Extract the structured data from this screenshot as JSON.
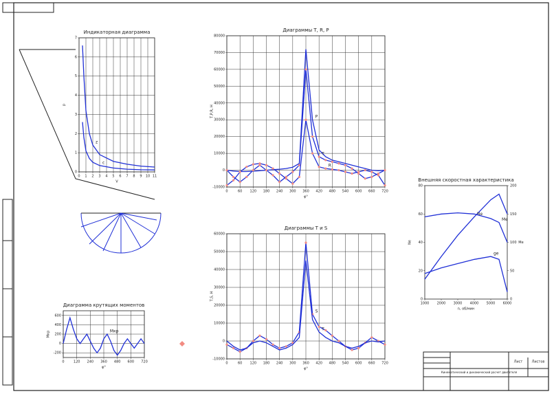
{
  "sheet": {
    "title_block": {
      "designation": "Кинематический и динамический расчет двигателя",
      "sheet_label": "Лист",
      "sheets_label": "Листов"
    }
  },
  "chart_data": [
    {
      "type": "line",
      "title": "Индикаторная диаграмма",
      "x_label": "V",
      "y_label": "p",
      "x": [
        0.5,
        0.7,
        1,
        1.5,
        2,
        3,
        5,
        7,
        9,
        11
      ],
      "series": [
        {
          "name": "z",
          "color": "#1f2fd6",
          "values": [
            6.6,
            5.0,
            3.2,
            2.0,
            1.4,
            0.9,
            0.55,
            0.4,
            0.3,
            0.25
          ]
        },
        {
          "name": "c",
          "color": "#1f2fd6",
          "values": [
            2.6,
            1.8,
            1.1,
            0.7,
            0.5,
            0.33,
            0.2,
            0.14,
            0.11,
            0.1
          ]
        }
      ],
      "xlim": [
        0,
        11
      ],
      "ylim": [
        0,
        7
      ],
      "xticks": [
        0,
        1,
        2,
        3,
        4,
        5,
        6,
        7,
        8,
        9,
        10,
        11
      ],
      "yticks": [
        0,
        1,
        2,
        3,
        4,
        5,
        6,
        7
      ],
      "grid": true
    },
    {
      "type": "line",
      "title": "Диаграммы T, R, P",
      "x_label": "φ°",
      "y_label": "T,P,R, Н",
      "x": [
        0,
        30,
        60,
        90,
        120,
        150,
        180,
        210,
        240,
        270,
        300,
        330,
        360,
        390,
        420,
        450,
        480,
        510,
        540,
        570,
        600,
        630,
        660,
        690,
        720
      ],
      "series": [
        {
          "name": "P",
          "color": "#1f2fd6",
          "markers": false,
          "values": [
            0,
            -500,
            -800,
            -800,
            -600,
            -300,
            0,
            300,
            600,
            1000,
            1800,
            4000,
            72000,
            30000,
            12000,
            8000,
            6000,
            5000,
            4000,
            3000,
            2000,
            1000,
            0,
            -300,
            0
          ]
        },
        {
          "name": "T",
          "color": "#1f2fd6",
          "markers": true,
          "values": [
            0,
            -4000,
            -7000,
            -4000,
            0,
            3000,
            0,
            -3000,
            -7000,
            -4000,
            -1000,
            3000,
            60000,
            20000,
            8000,
            6000,
            5000,
            4000,
            3000,
            1000,
            -2000,
            -5000,
            -4000,
            -2000,
            0
          ]
        },
        {
          "name": "R",
          "color": "#1f2fd6",
          "markers": true,
          "values": [
            -9000,
            -6000,
            -1000,
            2000,
            3500,
            4000,
            3000,
            1000,
            -2000,
            -5000,
            -8000,
            -4000,
            30000,
            10000,
            2000,
            1000,
            500,
            0,
            -1000,
            -2000,
            -1000,
            0,
            -1000,
            -3000,
            -9000
          ]
        }
      ],
      "xlim": [
        0,
        720
      ],
      "ylim": [
        -10000,
        80000
      ],
      "xticks": [
        0,
        60,
        120,
        180,
        240,
        300,
        360,
        420,
        480,
        540,
        600,
        660,
        720
      ],
      "yticks": [
        -10000,
        0,
        10000,
        20000,
        30000,
        40000,
        50000,
        60000,
        70000,
        80000
      ],
      "grid": true
    },
    {
      "type": "line",
      "title": "Диаграммы T и S",
      "x_label": "φ°",
      "y_label": "T,S, Н",
      "x": [
        0,
        30,
        60,
        90,
        120,
        150,
        180,
        210,
        240,
        270,
        300,
        330,
        360,
        390,
        420,
        450,
        480,
        510,
        540,
        570,
        600,
        630,
        660,
        690,
        720
      ],
      "series": [
        {
          "name": "S",
          "color": "#1f2fd6",
          "markers": true,
          "values": [
            -2000,
            -4000,
            -6000,
            -4000,
            0,
            3000,
            1000,
            -2000,
            -4000,
            -3000,
            -1000,
            5000,
            55000,
            15000,
            8000,
            6000,
            3000,
            0,
            -3000,
            -5000,
            -4000,
            -1000,
            2000,
            0,
            -2000
          ]
        },
        {
          "name": "T",
          "color": "#1f2fd6",
          "markers": false,
          "values": [
            0,
            -3000,
            -5000,
            -4000,
            -1000,
            0,
            -1000,
            -3000,
            -5000,
            -4000,
            -2000,
            2000,
            45000,
            12000,
            5000,
            2000,
            0,
            -1000,
            -3000,
            -4000,
            -3000,
            -1000,
            0,
            -500,
            0
          ]
        }
      ],
      "xlim": [
        0,
        720
      ],
      "ylim": [
        -10000,
        60000
      ],
      "xticks": [
        0,
        60,
        120,
        180,
        240,
        300,
        360,
        420,
        480,
        540,
        600,
        660,
        720
      ],
      "yticks": [
        -10000,
        0,
        10000,
        20000,
        30000,
        40000,
        50000,
        60000
      ],
      "grid": true
    },
    {
      "type": "line",
      "title": "Внешняя скоростная характеристика",
      "x_label": "n, об/мин",
      "y_label": "Ne",
      "y2_label": "Me",
      "x": [
        1000,
        2000,
        3000,
        4000,
        5000,
        5500,
        6000
      ],
      "series": [
        {
          "name": "Ne",
          "color": "#1f2fd6",
          "values": [
            14,
            30,
            45,
            58,
            70,
            74,
            60
          ]
        },
        {
          "name": "ge",
          "color": "#1f2fd6",
          "values": [
            18,
            22,
            25,
            28,
            30,
            28,
            5
          ]
        },
        {
          "name": "Me",
          "color": "#1f2fd6",
          "axis": "y2",
          "values": [
            145,
            150,
            152,
            150,
            142,
            135,
            100
          ]
        }
      ],
      "xlim": [
        1000,
        6000
      ],
      "ylim": [
        0,
        80
      ],
      "y2lim": [
        0,
        200
      ],
      "xticks": [
        1000,
        2000,
        3000,
        4000,
        5000,
        6000
      ],
      "yticks": [
        0,
        20,
        40,
        60,
        80
      ],
      "y2ticks": [
        0,
        50,
        100,
        150,
        200
      ],
      "grid": false
    },
    {
      "type": "line",
      "title": "Диаграмма крутящих моментов",
      "x_label": "φ°",
      "y_label": "Mкр",
      "x": [
        0,
        30,
        60,
        90,
        120,
        150,
        180,
        210,
        240,
        270,
        300,
        330,
        360,
        390,
        420,
        450,
        480,
        510,
        540,
        570,
        600,
        630,
        660,
        690,
        720
      ],
      "series": [
        {
          "name": "Mкр",
          "color": "#1f2fd6",
          "values": [
            0,
            300,
            550,
            300,
            100,
            0,
            100,
            200,
            50,
            -100,
            -200,
            -100,
            100,
            200,
            50,
            -150,
            -250,
            -150,
            0,
            100,
            0,
            -100,
            0,
            100,
            0
          ]
        }
      ],
      "xlim": [
        0,
        720
      ],
      "ylim": [
        -300,
        700
      ],
      "xticks": [
        0,
        120,
        240,
        360,
        480,
        600,
        720
      ],
      "yticks": [
        -200,
        0,
        200,
        400,
        600
      ],
      "grid": true
    }
  ]
}
